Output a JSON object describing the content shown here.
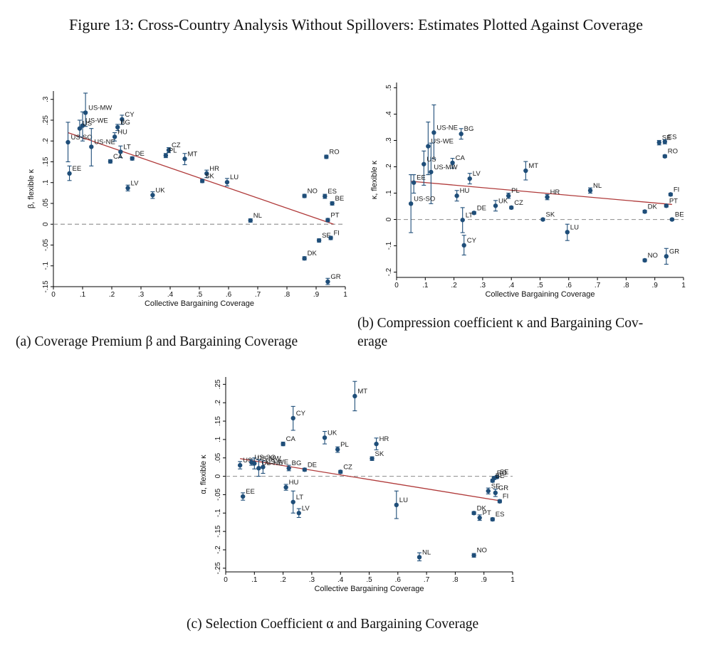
{
  "figure_title": "Figure 13: Cross-Country Analysis Without Spillovers: Estimates Plotted Against Coverage",
  "captions": {
    "a": "(a) Coverage Premium β and Bargaining Coverage",
    "b_line1": "(b) Compression coefficient κ and Bargaining Cov-",
    "b_line2": "erage",
    "c": "(c) Selection Coefficient α and Bargaining Coverage"
  },
  "colors": {
    "marker": "#1f4e79",
    "fit_line": "#b03a3a",
    "zero_line": "#999999",
    "axis": "#000000"
  },
  "chart_data": [
    {
      "id": "a",
      "type": "scatter",
      "xlabel": "Collective Bargaining Coverage",
      "ylabel": "β, flexible κ",
      "xlim": [
        0,
        1
      ],
      "ylim": [
        -0.15,
        0.32
      ],
      "xticks": [
        0,
        0.1,
        0.2,
        0.3,
        0.4,
        0.5,
        0.6,
        0.7,
        0.8,
        0.9,
        1
      ],
      "xtick_labels": [
        "0",
        ".1",
        ".2",
        ".3",
        ".4",
        ".5",
        ".6",
        ".7",
        ".8",
        ".9",
        "1"
      ],
      "yticks": [
        -0.15,
        -0.1,
        -0.05,
        0,
        0.05,
        0.1,
        0.15,
        0.2,
        0.25,
        0.3
      ],
      "ytick_labels": [
        "-.15",
        "-.1",
        "-.05",
        "0",
        ".05",
        ".1",
        ".15",
        ".2",
        ".25",
        ".3"
      ],
      "zero_line": 0,
      "fit_line": {
        "x": [
          0.05,
          0.96
        ],
        "y": [
          0.22,
          0.0
        ]
      },
      "points": [
        {
          "label": "US-MW",
          "x": 0.11,
          "y": 0.268,
          "lo": 0.235,
          "hi": 0.315
        },
        {
          "label": "CY",
          "x": 0.235,
          "y": 0.252,
          "lo": 0.24,
          "hi": 0.262
        },
        {
          "label": "US-WE",
          "x": 0.1,
          "y": 0.237,
          "lo": 0.2,
          "hi": 0.27
        },
        {
          "label": "US",
          "x": 0.09,
          "y": 0.23,
          "lo": 0.21,
          "hi": 0.25
        },
        {
          "label": "BG",
          "x": 0.22,
          "y": 0.233,
          "lo": 0.225,
          "hi": 0.24
        },
        {
          "label": "HU",
          "x": 0.21,
          "y": 0.21,
          "lo": 0.2,
          "hi": 0.22
        },
        {
          "label": "US-SO",
          "x": 0.05,
          "y": 0.197,
          "lo": 0.15,
          "hi": 0.245
        },
        {
          "label": "US-NE",
          "x": 0.13,
          "y": 0.186,
          "lo": 0.14,
          "hi": 0.23
        },
        {
          "label": "LT",
          "x": 0.23,
          "y": 0.174,
          "lo": 0.16,
          "hi": 0.188
        },
        {
          "label": "DE",
          "x": 0.27,
          "y": 0.158,
          "lo": 0.154,
          "hi": 0.162
        },
        {
          "label": "CA",
          "x": 0.195,
          "y": 0.151,
          "lo": 0.147,
          "hi": 0.155
        },
        {
          "label": "EE",
          "x": 0.055,
          "y": 0.122,
          "lo": 0.105,
          "hi": 0.14
        },
        {
          "label": "CZ",
          "x": 0.395,
          "y": 0.178,
          "lo": 0.172,
          "hi": 0.184
        },
        {
          "label": "PL",
          "x": 0.385,
          "y": 0.165,
          "lo": 0.16,
          "hi": 0.17
        },
        {
          "label": "MT",
          "x": 0.45,
          "y": 0.157,
          "lo": 0.143,
          "hi": 0.17
        },
        {
          "label": "HR",
          "x": 0.525,
          "y": 0.122,
          "lo": 0.112,
          "hi": 0.13
        },
        {
          "label": "SK",
          "x": 0.51,
          "y": 0.104,
          "lo": 0.1,
          "hi": 0.108
        },
        {
          "label": "LU",
          "x": 0.595,
          "y": 0.101,
          "lo": 0.092,
          "hi": 0.11
        },
        {
          "label": "LV",
          "x": 0.255,
          "y": 0.087,
          "lo": 0.08,
          "hi": 0.094
        },
        {
          "label": "UK",
          "x": 0.34,
          "y": 0.07,
          "lo": 0.062,
          "hi": 0.078
        },
        {
          "label": "NL",
          "x": 0.675,
          "y": 0.009,
          "lo": 0.005,
          "hi": 0.013
        },
        {
          "label": "RO",
          "x": 0.935,
          "y": 0.162,
          "lo": 0.158,
          "hi": 0.166
        },
        {
          "label": "NO",
          "x": 0.86,
          "y": 0.068,
          "lo": 0.064,
          "hi": 0.072
        },
        {
          "label": "ES",
          "x": 0.93,
          "y": 0.067,
          "lo": 0.062,
          "hi": 0.072
        },
        {
          "label": "BE",
          "x": 0.955,
          "y": 0.05,
          "lo": 0.046,
          "hi": 0.054
        },
        {
          "label": "PT",
          "x": 0.94,
          "y": 0.01,
          "lo": 0.006,
          "hi": 0.014
        },
        {
          "label": "SE",
          "x": 0.91,
          "y": -0.039,
          "lo": -0.043,
          "hi": -0.035
        },
        {
          "label": "FI",
          "x": 0.95,
          "y": -0.033,
          "lo": -0.037,
          "hi": -0.029
        },
        {
          "label": "DK",
          "x": 0.86,
          "y": -0.082,
          "lo": -0.086,
          "hi": -0.078
        },
        {
          "label": "GR",
          "x": 0.94,
          "y": -0.138,
          "lo": -0.145,
          "hi": -0.13
        }
      ]
    },
    {
      "id": "b",
      "type": "scatter",
      "xlabel": "Collective Bargaining Coverage",
      "ylabel": "κ, flexible κ",
      "xlim": [
        0,
        1
      ],
      "ylim": [
        -0.22,
        0.52
      ],
      "xticks": [
        0,
        0.1,
        0.2,
        0.3,
        0.4,
        0.5,
        0.6,
        0.7,
        0.8,
        0.9,
        1
      ],
      "xtick_labels": [
        "0",
        ".1",
        ".2",
        ".3",
        ".4",
        ".5",
        ".6",
        ".7",
        ".8",
        ".9",
        "1"
      ],
      "yticks": [
        -0.2,
        -0.1,
        0,
        0.1,
        0.2,
        0.3,
        0.4,
        0.5
      ],
      "ytick_labels": [
        "-.2",
        "-.1",
        "0",
        ".1",
        ".2",
        ".3",
        ".4",
        ".5"
      ],
      "zero_line": 0,
      "fit_line": {
        "x": [
          0.05,
          0.96
        ],
        "y": [
          0.145,
          0.057
        ]
      },
      "points": [
        {
          "label": "US-NE",
          "x": 0.13,
          "y": 0.33,
          "lo": 0.23,
          "hi": 0.435
        },
        {
          "label": "BG",
          "x": 0.225,
          "y": 0.325,
          "lo": 0.305,
          "hi": 0.345
        },
        {
          "label": "US-WE",
          "x": 0.11,
          "y": 0.278,
          "lo": 0.17,
          "hi": 0.37
        },
        {
          "label": "US",
          "x": 0.095,
          "y": 0.21,
          "lo": 0.13,
          "hi": 0.26
        },
        {
          "label": "CA",
          "x": 0.195,
          "y": 0.215,
          "lo": 0.195,
          "hi": 0.232
        },
        {
          "label": "US-MW",
          "x": 0.12,
          "y": 0.18,
          "lo": 0.06,
          "hi": 0.29
        },
        {
          "label": "LV",
          "x": 0.255,
          "y": 0.155,
          "lo": 0.135,
          "hi": 0.175
        },
        {
          "label": "EE",
          "x": 0.06,
          "y": 0.14,
          "lo": 0.1,
          "hi": 0.17
        },
        {
          "label": "US-SO",
          "x": 0.05,
          "y": 0.06,
          "lo": -0.05,
          "hi": 0.17
        },
        {
          "label": "HU",
          "x": 0.21,
          "y": 0.09,
          "lo": 0.07,
          "hi": 0.11
        },
        {
          "label": "PL",
          "x": 0.39,
          "y": 0.09,
          "lo": 0.08,
          "hi": 0.1
        },
        {
          "label": "UK",
          "x": 0.345,
          "y": 0.052,
          "lo": 0.032,
          "hi": 0.072
        },
        {
          "label": "CZ",
          "x": 0.4,
          "y": 0.045,
          "lo": 0.04,
          "hi": 0.05
        },
        {
          "label": "DE",
          "x": 0.27,
          "y": 0.025,
          "lo": 0.02,
          "hi": 0.03
        },
        {
          "label": "LT",
          "x": 0.23,
          "y": -0.002,
          "lo": -0.05,
          "hi": 0.045
        },
        {
          "label": "CY",
          "x": 0.235,
          "y": -0.098,
          "lo": -0.135,
          "hi": -0.06
        },
        {
          "label": "MT",
          "x": 0.45,
          "y": 0.185,
          "lo": 0.15,
          "hi": 0.22
        },
        {
          "label": "HR",
          "x": 0.525,
          "y": 0.085,
          "lo": 0.075,
          "hi": 0.095
        },
        {
          "label": "SK",
          "x": 0.51,
          "y": 0.0,
          "lo": -0.004,
          "hi": 0.004
        },
        {
          "label": "LU",
          "x": 0.595,
          "y": -0.048,
          "lo": -0.08,
          "hi": -0.018
        },
        {
          "label": "NL",
          "x": 0.675,
          "y": 0.11,
          "lo": 0.1,
          "hi": 0.12
        },
        {
          "label": "SE",
          "x": 0.915,
          "y": 0.292,
          "lo": 0.283,
          "hi": 0.3
        },
        {
          "label": "ES",
          "x": 0.935,
          "y": 0.295,
          "lo": 0.287,
          "hi": 0.303
        },
        {
          "label": "RO",
          "x": 0.935,
          "y": 0.24,
          "lo": 0.235,
          "hi": 0.245
        },
        {
          "label": "FI",
          "x": 0.955,
          "y": 0.095,
          "lo": 0.09,
          "hi": 0.1
        },
        {
          "label": "PT",
          "x": 0.94,
          "y": 0.052,
          "lo": 0.047,
          "hi": 0.057
        },
        {
          "label": "DK",
          "x": 0.865,
          "y": 0.03,
          "lo": 0.025,
          "hi": 0.035
        },
        {
          "label": "BE",
          "x": 0.96,
          "y": 0.0,
          "lo": -0.004,
          "hi": 0.004
        },
        {
          "label": "NO",
          "x": 0.865,
          "y": -0.155,
          "lo": -0.16,
          "hi": -0.15
        },
        {
          "label": "GR",
          "x": 0.94,
          "y": -0.14,
          "lo": -0.17,
          "hi": -0.11
        }
      ]
    },
    {
      "id": "c",
      "type": "scatter",
      "xlabel": "Collective Bargaining Coverage",
      "ylabel": "α, flexible κ",
      "xlim": [
        0,
        1
      ],
      "ylim": [
        -0.26,
        0.27
      ],
      "xticks": [
        0,
        0.1,
        0.2,
        0.3,
        0.4,
        0.5,
        0.6,
        0.7,
        0.8,
        0.9,
        1
      ],
      "xtick_labels": [
        "0",
        ".1",
        ".2",
        ".3",
        ".4",
        ".5",
        ".6",
        ".7",
        ".8",
        ".9",
        "1"
      ],
      "yticks": [
        -0.25,
        -0.2,
        -0.15,
        -0.1,
        -0.05,
        0,
        0.05,
        0.1,
        0.15,
        0.2,
        0.25
      ],
      "ytick_labels": [
        "-.25",
        "-.2",
        "-.15",
        "-.1",
        "-.05",
        "0",
        ".05",
        ".1",
        ".15",
        ".2",
        ".25"
      ],
      "zero_line": 0,
      "fit_line": {
        "x": [
          0.05,
          0.96
        ],
        "y": [
          0.048,
          -0.067
        ]
      },
      "points": [
        {
          "label": "MT",
          "x": 0.45,
          "y": 0.218,
          "lo": 0.178,
          "hi": 0.258
        },
        {
          "label": "CY",
          "x": 0.235,
          "y": 0.158,
          "lo": 0.125,
          "hi": 0.19
        },
        {
          "label": "UK",
          "x": 0.345,
          "y": 0.105,
          "lo": 0.088,
          "hi": 0.122
        },
        {
          "label": "CA",
          "x": 0.2,
          "y": 0.088,
          "lo": 0.083,
          "hi": 0.093
        },
        {
          "label": "HR",
          "x": 0.525,
          "y": 0.088,
          "lo": 0.072,
          "hi": 0.104
        },
        {
          "label": "PL",
          "x": 0.39,
          "y": 0.073,
          "lo": 0.065,
          "hi": 0.08
        },
        {
          "label": "SK",
          "x": 0.51,
          "y": 0.048,
          "lo": 0.043,
          "hi": 0.053
        },
        {
          "label": "US",
          "x": 0.05,
          "y": 0.03,
          "lo": 0.02,
          "hi": 0.04
        },
        {
          "label": "US-MW",
          "x": 0.1,
          "y": 0.035,
          "lo": 0.02,
          "hi": 0.05
        },
        {
          "label": "US-SO",
          "x": 0.09,
          "y": 0.038,
          "lo": 0.03,
          "hi": 0.046
        },
        {
          "label": "US-WE",
          "x": 0.13,
          "y": 0.025,
          "lo": 0.008,
          "hi": 0.042
        },
        {
          "label": "US-NE",
          "x": 0.115,
          "y": 0.022,
          "lo": 0.0,
          "hi": 0.045
        },
        {
          "label": "BG",
          "x": 0.22,
          "y": 0.022,
          "lo": 0.015,
          "hi": 0.03
        },
        {
          "label": "DE",
          "x": 0.275,
          "y": 0.018,
          "lo": 0.014,
          "hi": 0.022
        },
        {
          "label": "CZ",
          "x": 0.4,
          "y": 0.012,
          "lo": 0.008,
          "hi": 0.016
        },
        {
          "label": "HU",
          "x": 0.21,
          "y": -0.03,
          "lo": -0.038,
          "hi": -0.022
        },
        {
          "label": "EE",
          "x": 0.06,
          "y": -0.055,
          "lo": -0.065,
          "hi": -0.045
        },
        {
          "label": "LT",
          "x": 0.235,
          "y": -0.07,
          "lo": -0.1,
          "hi": -0.04
        },
        {
          "label": "LV",
          "x": 0.255,
          "y": -0.1,
          "lo": -0.112,
          "hi": -0.088
        },
        {
          "label": "LU",
          "x": 0.595,
          "y": -0.078,
          "lo": -0.115,
          "hi": -0.04
        },
        {
          "label": "NL",
          "x": 0.675,
          "y": -0.22,
          "lo": -0.23,
          "hi": -0.208
        },
        {
          "label": "NO",
          "x": 0.865,
          "y": -0.215,
          "lo": -0.22,
          "hi": -0.21
        },
        {
          "label": "RO",
          "x": 0.935,
          "y": -0.005,
          "lo": -0.009,
          "hi": -0.001
        },
        {
          "label": "SE",
          "x": 0.945,
          "y": -0.002,
          "lo": -0.006,
          "hi": 0.002
        },
        {
          "label": "BE",
          "x": 0.93,
          "y": -0.012,
          "lo": -0.016,
          "hi": -0.008
        },
        {
          "label": "SE",
          "x": 0.915,
          "y": -0.04,
          "lo": -0.048,
          "hi": -0.032
        },
        {
          "label": "GR",
          "x": 0.94,
          "y": -0.045,
          "lo": -0.055,
          "hi": -0.035
        },
        {
          "label": "FI",
          "x": 0.955,
          "y": -0.068,
          "lo": -0.072,
          "hi": -0.064
        },
        {
          "label": "DK",
          "x": 0.865,
          "y": -0.1,
          "lo": -0.104,
          "hi": -0.096
        },
        {
          "label": "PT",
          "x": 0.885,
          "y": -0.113,
          "lo": -0.12,
          "hi": -0.105
        },
        {
          "label": "ES",
          "x": 0.93,
          "y": -0.117,
          "lo": -0.121,
          "hi": -0.113
        }
      ]
    }
  ]
}
